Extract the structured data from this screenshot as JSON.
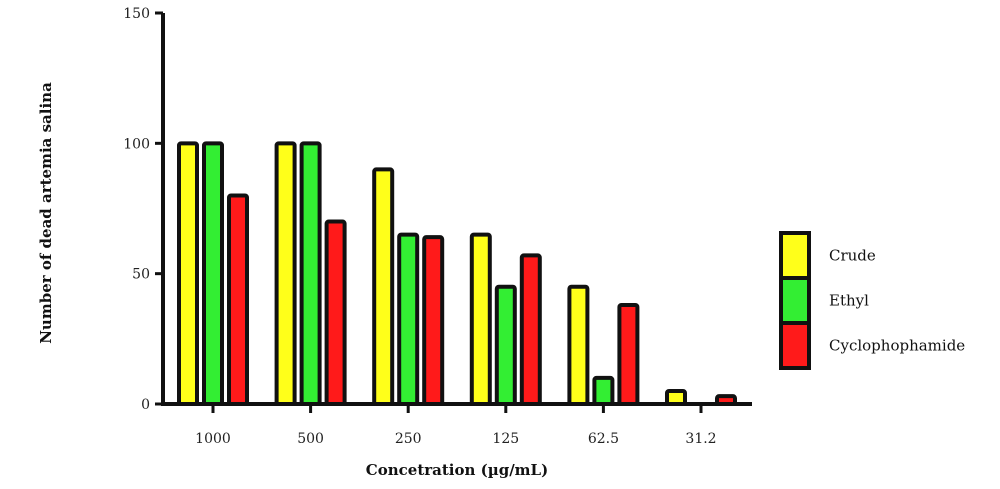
{
  "chart_data": {
    "type": "bar",
    "categories": [
      "1000",
      "500",
      "250",
      "125",
      "62.5",
      "31.2"
    ],
    "series": [
      {
        "name": "Crude",
        "color": "#ffff1a",
        "values": [
          100,
          100,
          90,
          65,
          45,
          5
        ]
      },
      {
        "name": "Ethyl",
        "color": "#33ee33",
        "values": [
          100,
          100,
          65,
          45,
          10,
          0
        ]
      },
      {
        "name": "Cyclophophamide",
        "color": "#ff1a1a",
        "values": [
          80,
          70,
          64,
          57,
          38,
          3
        ]
      }
    ],
    "xlabel": "Concetration (µg/mL)",
    "ylabel": "Number of dead artemia salina",
    "ylim": [
      0,
      150
    ],
    "yticks": [
      "0",
      "50",
      "100",
      "150"
    ],
    "grid": false,
    "legend_position": "right"
  }
}
